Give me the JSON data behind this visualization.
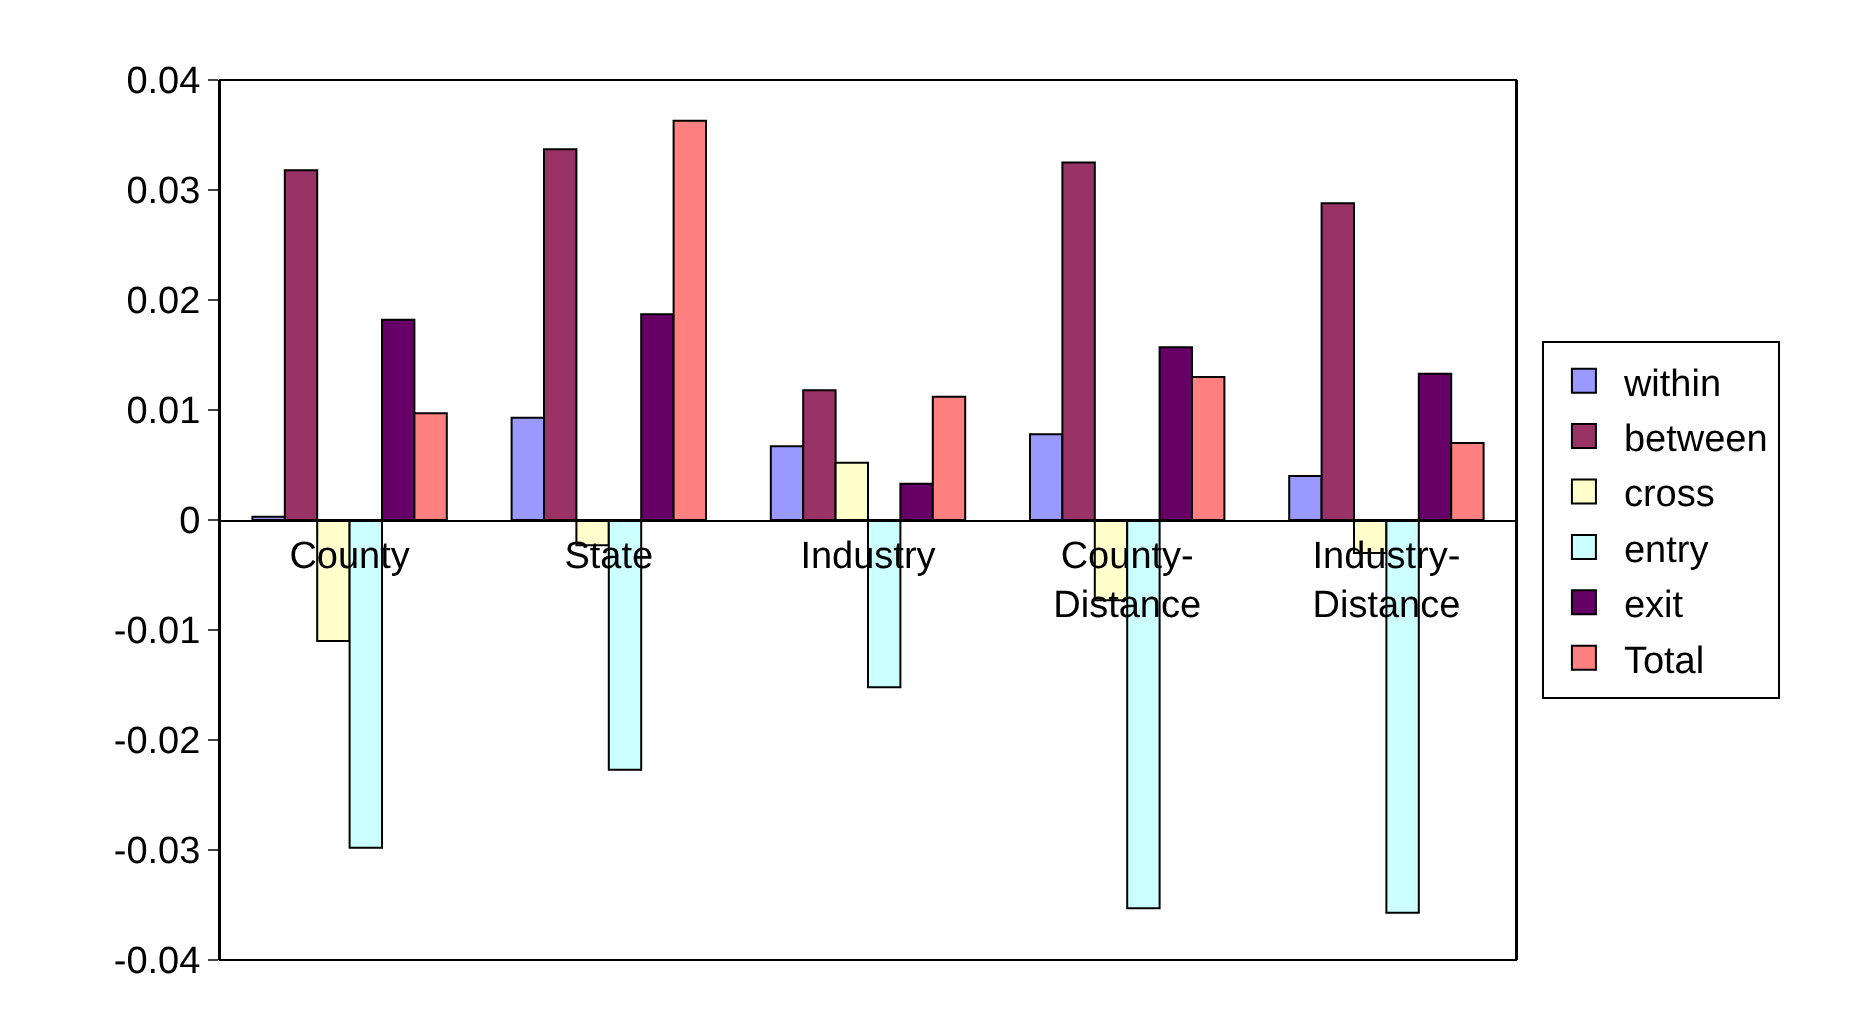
{
  "chart_data": {
    "type": "bar",
    "categories": [
      "County",
      "State",
      "Industry",
      "County-\nDistance",
      "Industry-\nDistance"
    ],
    "series": [
      {
        "name": "within",
        "color": "#9999ff",
        "values": [
          0.0003,
          0.0093,
          0.0067,
          0.0078,
          0.004
        ]
      },
      {
        "name": "between",
        "color": "#993366",
        "values": [
          0.0318,
          0.0337,
          0.0118,
          0.0325,
          0.0288
        ]
      },
      {
        "name": "cross",
        "color": "#ffffcc",
        "values": [
          -0.011,
          -0.0023,
          0.0052,
          -0.0073,
          -0.003
        ]
      },
      {
        "name": "entry",
        "color": "#ccffff",
        "values": [
          -0.0298,
          -0.0227,
          -0.0152,
          -0.0353,
          -0.0357
        ]
      },
      {
        "name": "exit",
        "color": "#660066",
        "values": [
          0.0182,
          0.0187,
          0.0033,
          0.0157,
          0.0133
        ]
      },
      {
        "name": "Total",
        "color": "#ff8080",
        "values": [
          0.0097,
          0.0363,
          0.0112,
          0.013,
          0.007
        ]
      }
    ],
    "ylim": [
      -0.04,
      0.04
    ],
    "yticks": [
      -0.04,
      -0.03,
      -0.02,
      -0.01,
      0,
      0.01,
      0.02,
      0.03,
      0.04
    ],
    "legend": "right"
  }
}
